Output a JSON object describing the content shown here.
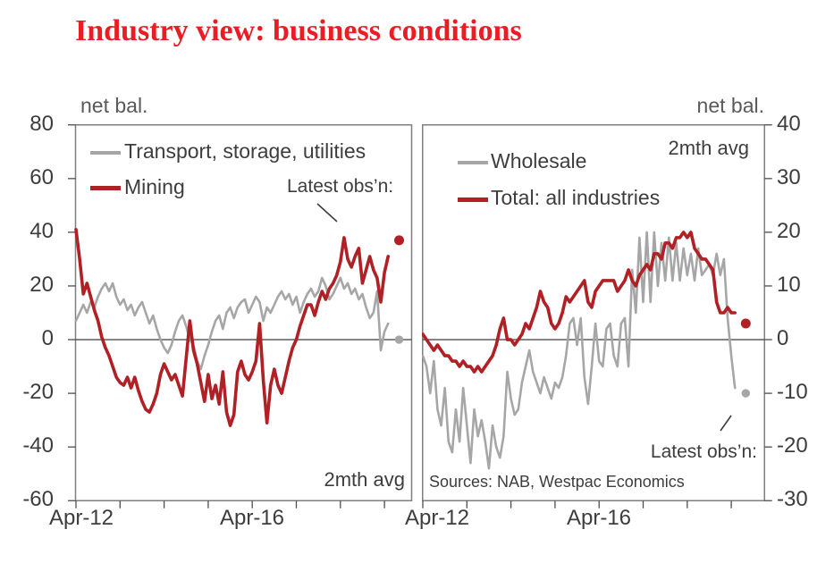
{
  "title": "Industry view: business conditions",
  "colors": {
    "title": "#ec1c24",
    "axis_text": "#3d3d3d",
    "muted_text": "#595959",
    "border": "#7f7f7f",
    "zero_line": "#4d4d4d",
    "red_series": "#b02025",
    "gray_series": "#a6a6a6"
  },
  "chart_data": {
    "type": "line",
    "x_axis": {
      "start": "Apr-2012",
      "end": "May-2019",
      "freq": "monthly",
      "ticks": "yearly at April"
    },
    "panels": [
      {
        "y_axis": {
          "label": "net bal.",
          "ticks": [
            80,
            60,
            40,
            20,
            0,
            -20,
            -40,
            -60
          ],
          "ylim": [
            -60,
            80
          ]
        },
        "x_axis": {
          "labels": [
            "Apr-12",
            "Apr-16"
          ]
        },
        "avg_note": "2mth avg",
        "latest_label": "Latest obs’n:",
        "series": [
          {
            "name": "Transport, storage, utilities",
            "color": "#a6a6a6",
            "width": 2.6,
            "latest_obs": 0,
            "values": [
              7,
              10,
              13,
              10,
              14,
              12,
              16,
              19,
              21,
              18,
              21,
              16,
              13,
              15,
              11,
              13,
              9,
              12,
              14,
              10,
              6,
              9,
              4,
              0,
              -3,
              -5,
              -2,
              3,
              7,
              9,
              5,
              0,
              -2,
              -8,
              -11,
              -6,
              -2,
              3,
              7,
              9,
              4,
              10,
              12,
              8,
              12,
              14,
              15,
              10,
              13,
              16,
              14,
              7,
              12,
              10,
              13,
              16,
              18,
              15,
              17,
              13,
              16,
              10,
              14,
              17,
              19,
              16,
              18,
              23,
              20,
              15,
              17,
              20,
              23,
              19,
              21,
              17,
              19,
              15,
              17,
              12,
              8,
              10,
              18,
              -4,
              3,
              6
            ]
          },
          {
            "name": "Mining",
            "color": "#b02025",
            "width": 3.6,
            "latest_obs": 37,
            "values": [
              41,
              30,
              17,
              21,
              16,
              11,
              7,
              1,
              -3,
              -6,
              -10,
              -14,
              -16,
              -17,
              -14,
              -18,
              -14,
              -19,
              -23,
              -26,
              -27,
              -24,
              -20,
              -13,
              -9,
              -12,
              -15,
              -13,
              -17,
              -21,
              -7,
              7,
              -4,
              -9,
              -16,
              -23,
              -13,
              -22,
              -17,
              -24,
              -12,
              -27,
              -32,
              -28,
              -12,
              -8,
              -13,
              -15,
              -12,
              -8,
              6,
              -15,
              -31,
              -17,
              -11,
              -17,
              -20,
              -14,
              -8,
              -3,
              0,
              5,
              9,
              13,
              13,
              9,
              14,
              18,
              15,
              19,
              21,
              24,
              29,
              38,
              30,
              27,
              31,
              34,
              21,
              26,
              31,
              26,
              23,
              14,
              25,
              31
            ]
          }
        ]
      },
      {
        "y_axis": {
          "label": "net bal.",
          "ticks": [
            40,
            30,
            20,
            10,
            0,
            -10,
            -20,
            -30
          ],
          "ylim": [
            -30,
            40
          ]
        },
        "x_axis": {
          "labels": [
            "Apr-12",
            "Apr-16"
          ]
        },
        "avg_note": "2mth avg",
        "latest_label": "Latest obs’n:",
        "source_note": "Sources: NAB, Westpac Economics",
        "series": [
          {
            "name": "Wholesale",
            "color": "#a6a6a6",
            "width": 2.6,
            "latest_obs": -10,
            "values": [
              -3,
              -5,
              -10,
              -4,
              -13,
              -16,
              -9,
              -19,
              -21,
              -13,
              -19,
              -9,
              -16,
              -23,
              -13,
              -18,
              -15,
              -19,
              -24,
              -16,
              -20,
              -22,
              -18,
              -6,
              -11,
              -14,
              -13,
              -8,
              -5,
              -2,
              -6,
              -8,
              -10,
              -7,
              -9,
              -11,
              -8,
              -9,
              -7,
              -3,
              3,
              4,
              -1,
              4,
              -7,
              -12,
              -5,
              3,
              -4,
              -5,
              2,
              3,
              -3,
              -5,
              3,
              4,
              -5,
              13,
              5,
              19,
              7,
              20,
              7,
              20,
              10,
              18,
              11,
              19,
              11,
              18,
              11,
              17,
              12,
              16,
              11,
              17,
              12,
              13,
              14,
              12,
              16,
              12,
              15,
              4,
              -3,
              -9
            ]
          },
          {
            "name": "Total: all industries",
            "color": "#b02025",
            "width": 3.6,
            "latest_obs": 3,
            "values": [
              1,
              0,
              -1,
              -2,
              -1,
              -2,
              -3,
              -3,
              -4,
              -4,
              -5,
              -4,
              -5,
              -5,
              -6,
              -5,
              -6,
              -5,
              -4,
              -3,
              -1,
              2,
              4,
              0,
              0,
              -1,
              0,
              1,
              3,
              2,
              4,
              6,
              9,
              7,
              6,
              3,
              2,
              3,
              5,
              8,
              7,
              8,
              9,
              10,
              11,
              7,
              6,
              9,
              10,
              11,
              11,
              11,
              11,
              9,
              10,
              11,
              13,
              11,
              10,
              12,
              13,
              14,
              13,
              16,
              16,
              15,
              18,
              18,
              17,
              19,
              19,
              20,
              19,
              20,
              17,
              16,
              15,
              15,
              14,
              13,
              7,
              5,
              5,
              6,
              5,
              5
            ]
          }
        ]
      }
    ]
  }
}
